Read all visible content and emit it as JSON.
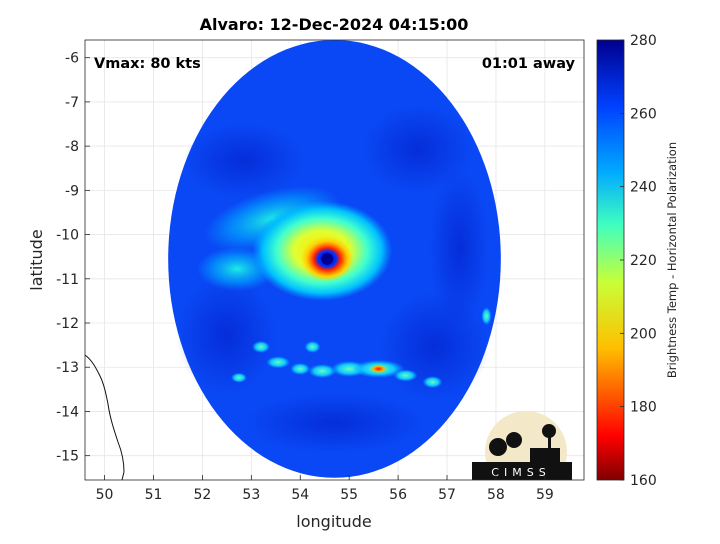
{
  "chart_data": {
    "type": "heatmap",
    "title": "Alvaro: 12-Dec-2024 04:15:00",
    "xlabel": "longitude",
    "ylabel": "latitude",
    "xlim": [
      49.6,
      59.8
    ],
    "ylim": [
      -15.55,
      -5.6
    ],
    "x_ticks": [
      50,
      51,
      52,
      53,
      54,
      55,
      56,
      57,
      58,
      59
    ],
    "y_ticks": [
      -6,
      -7,
      -8,
      -9,
      -10,
      -11,
      -12,
      -13,
      -14,
      -15
    ],
    "grid": true,
    "annotations": {
      "vmax": "Vmax: 80 kts",
      "time_offset": "01:01 away"
    },
    "colorbar": {
      "label": "Brightness Temp - Horizontal Polarization",
      "min": 160,
      "max": 280,
      "ticks": [
        160,
        180,
        200,
        220,
        240,
        260,
        280
      ]
    },
    "storm_center": {
      "lon": 54.55,
      "lat": -10.55
    },
    "swath": {
      "center_lon": 54.7,
      "center_lat": -10.55,
      "radius_lon": 3.4,
      "radius_lat": 4.95
    },
    "logo_text": "CIMSS"
  }
}
